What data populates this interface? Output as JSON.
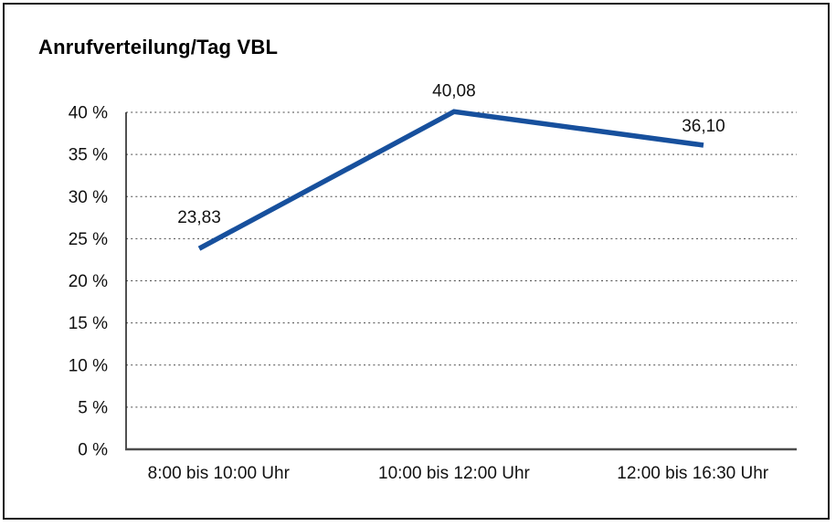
{
  "window": {
    "background": "#ffffff",
    "frame_border_color": "#141414"
  },
  "chart_data": {
    "type": "line",
    "title": "Anrufverteilung/Tag VBL",
    "categories": [
      "8:00 bis 10:00 Uhr",
      "10:00 bis 12:00 Uhr",
      "12:00 bis 16:30 Uhr"
    ],
    "values": [
      23.83,
      40.08,
      36.1
    ],
    "value_labels": [
      "23,83",
      "40,08",
      "36,10"
    ],
    "xlabel": "",
    "ylabel": "",
    "ylim": [
      0,
      40
    ],
    "ytick_step": 5,
    "ytick_labels": [
      "0 %",
      "5 %",
      "10 %",
      "15 %",
      "20 %",
      "25 %",
      "30 %",
      "35 %",
      "40 %"
    ],
    "grid": "horizontal-dotted",
    "legend": "none",
    "colors": {
      "series_line": "#17509d",
      "grid_line": "#4a4a4a",
      "y_axis": "#262626",
      "x_axis": "#4d4d4d",
      "text": "#111111"
    }
  }
}
